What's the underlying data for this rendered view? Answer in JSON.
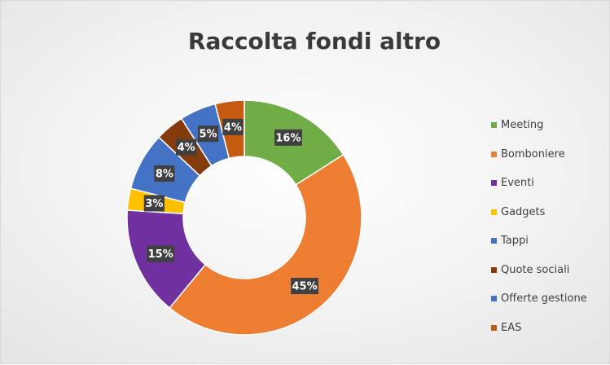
{
  "chart_data": {
    "type": "pie",
    "variant": "doughnut",
    "title": "Raccolta fondi altro",
    "legend_position": "right",
    "slices": [
      {
        "name": "Meeting",
        "value": 16,
        "label": "16%",
        "color": "#70ad47"
      },
      {
        "name": "Bomboniere",
        "value": 45,
        "label": "45%",
        "color": "#ed7d31"
      },
      {
        "name": "Eventi",
        "value": 15,
        "label": "15%",
        "color": "#7030a0"
      },
      {
        "name": "Gadgets",
        "value": 3,
        "label": "3%",
        "color": "#ffc000"
      },
      {
        "name": "Tappi",
        "value": 8,
        "label": "8%",
        "color": "#4472c4"
      },
      {
        "name": "Quote sociali",
        "value": 4,
        "label": "4%",
        "color": "#843c0c"
      },
      {
        "name": "Offerte gestione",
        "value": 5,
        "label": "5%",
        "color": "#4472c4"
      },
      {
        "name": "EAS",
        "value": 4,
        "label": "4%",
        "color": "#c55a11"
      }
    ]
  }
}
